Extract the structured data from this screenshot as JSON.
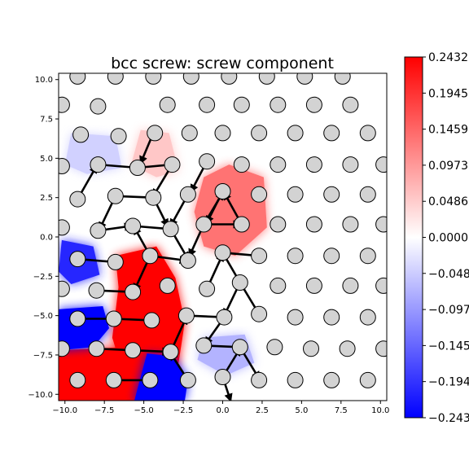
{
  "chart_data": {
    "type": "heatmap",
    "title": "bcc screw: screw component",
    "xlabel": "",
    "ylabel": "",
    "xlim": [
      -10.4,
      10.4
    ],
    "ylim": [
      -10.4,
      10.4
    ],
    "x_ticks": [
      -10.0,
      -7.5,
      -5.0,
      -2.5,
      0.0,
      2.5,
      5.0,
      7.5,
      10.0
    ],
    "x_tick_labels": [
      "−10.0",
      "−7.5",
      "−5.0",
      "−2.5",
      "0.0",
      "2.5",
      "5.0",
      "7.5",
      "10.0"
    ],
    "y_ticks": [
      10.0,
      7.5,
      5.0,
      2.5,
      0.0,
      -2.5,
      -5.0,
      -7.5,
      -10.0
    ],
    "y_tick_labels": [
      "10.0",
      "7.5",
      "5.0",
      "2.5",
      "0.0",
      "−2.5",
      "−5.0",
      "−7.5",
      "−10.0"
    ],
    "colorbar": {
      "colormap": "bwr",
      "range": [
        -0.2432,
        0.2432
      ],
      "ticks": [
        0.2432,
        0.1945,
        0.1459,
        0.0973,
        0.0486,
        0.0,
        -0.0486,
        -0.0973,
        -0.1459,
        -0.1945,
        -0.2432
      ],
      "tick_labels": [
        "0.2432",
        "0.1945",
        "0.1459",
        "0.0973",
        "0.0486",
        "0.0000",
        "−0.048",
        "−0.097",
        "−0.145",
        "−0.194",
        "−0.243"
      ],
      "colors": {
        "max": "#ff0000",
        "mid": "#ffffff",
        "min": "#0000ff"
      }
    },
    "regions": [
      {
        "sign": "positive",
        "strength": 1.0,
        "polygon": [
          [
            -6.8,
            -1.2
          ],
          [
            -4.2,
            -0.6
          ],
          [
            -3.0,
            -2.6
          ],
          [
            -2.4,
            -5.4
          ],
          [
            -2.8,
            -8.0
          ],
          [
            -3.4,
            -9.2
          ],
          [
            -6.2,
            -9.0
          ],
          [
            -7.0,
            -6.4
          ],
          [
            -6.6,
            -3.2
          ]
        ]
      },
      {
        "sign": "positive",
        "strength": 1.0,
        "polygon": [
          [
            -10.4,
            -7.2
          ],
          [
            -6.2,
            -7.0
          ],
          [
            -3.6,
            -8.6
          ],
          [
            -4.6,
            -10.4
          ],
          [
            -10.4,
            -10.4
          ]
        ]
      },
      {
        "sign": "positive",
        "strength": 0.55,
        "polygon": [
          [
            -1.2,
            3.8
          ],
          [
            0.4,
            4.6
          ],
          [
            2.6,
            3.8
          ],
          [
            2.8,
            0.6
          ],
          [
            0.8,
            -1.2
          ],
          [
            -1.2,
            -0.6
          ],
          [
            -1.8,
            1.6
          ]
        ]
      },
      {
        "sign": "positive",
        "strength": 0.22,
        "polygon": [
          [
            -5.2,
            6.8
          ],
          [
            -3.4,
            6.6
          ],
          [
            -2.8,
            4.2
          ],
          [
            -4.2,
            3.8
          ],
          [
            -5.8,
            4.6
          ]
        ]
      },
      {
        "sign": "negative",
        "strength": 1.0,
        "polygon": [
          [
            -10.4,
            -4.6
          ],
          [
            -7.6,
            -4.4
          ],
          [
            -7.2,
            -5.8
          ],
          [
            -8.2,
            -7.0
          ],
          [
            -10.4,
            -7.2
          ]
        ]
      },
      {
        "sign": "negative",
        "strength": 1.0,
        "polygon": [
          [
            -4.8,
            -7.4
          ],
          [
            -3.2,
            -7.6
          ],
          [
            -2.2,
            -9.0
          ],
          [
            -2.4,
            -10.4
          ],
          [
            -5.6,
            -10.4
          ]
        ]
      },
      {
        "sign": "negative",
        "strength": 0.85,
        "polygon": [
          [
            -10.2,
            -0.2
          ],
          [
            -8.2,
            -0.6
          ],
          [
            -7.8,
            -2.4
          ],
          [
            -9.6,
            -3.0
          ],
          [
            -10.4,
            -2.2
          ]
        ]
      },
      {
        "sign": "negative",
        "strength": 0.3,
        "polygon": [
          [
            -1.2,
            -6.4
          ],
          [
            1.4,
            -6.2
          ],
          [
            2.0,
            -8.0
          ],
          [
            0.2,
            -8.8
          ],
          [
            -1.6,
            -7.8
          ]
        ]
      },
      {
        "sign": "negative",
        "strength": 0.18,
        "polygon": [
          [
            -9.6,
            6.6
          ],
          [
            -6.8,
            6.4
          ],
          [
            -6.4,
            4.4
          ],
          [
            -8.6,
            4.0
          ],
          [
            -10.0,
            4.6
          ]
        ]
      }
    ],
    "atoms": [
      [
        -9.2,
        10.2
      ],
      [
        -6.8,
        10.2
      ],
      [
        -4.4,
        10.2
      ],
      [
        -2.0,
        10.2
      ],
      [
        0.4,
        10.2
      ],
      [
        2.8,
        10.2
      ],
      [
        5.2,
        10.2
      ],
      [
        7.6,
        10.2
      ],
      [
        -10.2,
        8.4
      ],
      [
        -7.9,
        8.3
      ],
      [
        -3.5,
        8.4
      ],
      [
        -1.0,
        8.4
      ],
      [
        1.2,
        8.4
      ],
      [
        3.5,
        8.4
      ],
      [
        5.8,
        8.4
      ],
      [
        8.1,
        8.4
      ],
      [
        -9.0,
        6.5
      ],
      [
        -6.6,
        6.4
      ],
      [
        -4.3,
        6.6
      ],
      [
        -2.1,
        6.6
      ],
      [
        0.0,
        6.6
      ],
      [
        2.3,
        6.6
      ],
      [
        4.6,
        6.6
      ],
      [
        6.9,
        6.6
      ],
      [
        9.2,
        6.6
      ],
      [
        -10.2,
        4.5
      ],
      [
        -7.9,
        4.6
      ],
      [
        -5.4,
        4.4
      ],
      [
        -3.2,
        4.6
      ],
      [
        -1.0,
        4.8
      ],
      [
        1.2,
        4.6
      ],
      [
        3.5,
        4.6
      ],
      [
        5.8,
        4.6
      ],
      [
        8.1,
        4.6
      ],
      [
        10.2,
        4.6
      ],
      [
        -9.2,
        2.4
      ],
      [
        -6.8,
        2.6
      ],
      [
        -4.4,
        2.5
      ],
      [
        -2.2,
        2.7
      ],
      [
        0.0,
        2.9
      ],
      [
        2.3,
        2.7
      ],
      [
        4.6,
        2.7
      ],
      [
        6.9,
        2.7
      ],
      [
        9.2,
        2.7
      ],
      [
        -10.2,
        0.6
      ],
      [
        -7.9,
        0.4
      ],
      [
        -5.7,
        0.7
      ],
      [
        -3.3,
        0.5
      ],
      [
        -1.2,
        0.8
      ],
      [
        1.2,
        0.8
      ],
      [
        3.5,
        0.8
      ],
      [
        5.8,
        0.8
      ],
      [
        8.1,
        0.8
      ],
      [
        10.2,
        0.8
      ],
      [
        -9.2,
        -1.4
      ],
      [
        -6.8,
        -1.6
      ],
      [
        -4.6,
        -1.2
      ],
      [
        -2.2,
        -1.5
      ],
      [
        0.0,
        -1.0
      ],
      [
        2.3,
        -1.2
      ],
      [
        4.6,
        -1.2
      ],
      [
        6.9,
        -1.2
      ],
      [
        9.2,
        -1.2
      ],
      [
        -10.2,
        -3.3
      ],
      [
        -8.0,
        -3.4
      ],
      [
        -5.7,
        -3.5
      ],
      [
        -3.5,
        -3.1
      ],
      [
        -1.0,
        -3.3
      ],
      [
        1.1,
        -2.9
      ],
      [
        3.5,
        -3.1
      ],
      [
        5.8,
        -3.1
      ],
      [
        8.1,
        -3.1
      ],
      [
        10.2,
        -3.1
      ],
      [
        -9.2,
        -5.2
      ],
      [
        -6.9,
        -5.2
      ],
      [
        -4.5,
        -5.3
      ],
      [
        -2.3,
        -5.0
      ],
      [
        0.1,
        -5.1
      ],
      [
        2.3,
        -4.9
      ],
      [
        4.6,
        -5.1
      ],
      [
        6.9,
        -5.1
      ],
      [
        9.2,
        -5.1
      ],
      [
        -10.2,
        -7.1
      ],
      [
        -8.0,
        -7.1
      ],
      [
        -5.7,
        -7.2
      ],
      [
        -3.3,
        -7.3
      ],
      [
        -1.2,
        -6.9
      ],
      [
        1.1,
        -7.0
      ],
      [
        3.3,
        -7.0
      ],
      [
        5.6,
        -7.1
      ],
      [
        7.9,
        -7.1
      ],
      [
        10.2,
        -7.1
      ],
      [
        -9.2,
        -9.1
      ],
      [
        -6.9,
        -9.1
      ],
      [
        -4.6,
        -9.1
      ],
      [
        -2.2,
        -9.1
      ],
      [
        0.0,
        -8.9
      ],
      [
        2.3,
        -9.1
      ],
      [
        4.6,
        -9.1
      ],
      [
        6.9,
        -9.1
      ],
      [
        9.2,
        -9.1
      ]
    ],
    "arrows": [
      [
        -7.9,
        4.6,
        -5.4,
        4.4
      ],
      [
        -5.4,
        4.4,
        -3.2,
        4.6
      ],
      [
        -4.4,
        6.6,
        -5.2,
        4.7
      ],
      [
        -3.2,
        4.6,
        -4.4,
        2.6
      ],
      [
        -1.0,
        4.8,
        -2.0,
        2.9
      ],
      [
        -2.2,
        2.7,
        -3.3,
        0.7
      ],
      [
        -1.2,
        0.8,
        -2.1,
        -1.2
      ],
      [
        0.0,
        2.9,
        -1.0,
        0.9
      ],
      [
        -6.8,
        2.6,
        -7.8,
        0.5
      ],
      [
        -6.8,
        2.6,
        -4.4,
        2.5
      ],
      [
        -4.4,
        2.5,
        -3.5,
        0.7
      ],
      [
        -5.7,
        0.7,
        -3.3,
        0.5
      ],
      [
        -7.9,
        0.4,
        -5.8,
        0.7
      ],
      [
        -4.6,
        -1.2,
        -5.6,
        0.6
      ],
      [
        -4.6,
        -1.2,
        -2.3,
        -1.5
      ],
      [
        -4.6,
        -1.2,
        -5.6,
        -3.4
      ],
      [
        -9.2,
        -1.4,
        -6.8,
        -1.6
      ],
      [
        -8.0,
        -3.4,
        -5.7,
        -3.5
      ],
      [
        -6.9,
        -5.2,
        -4.5,
        -5.3
      ],
      [
        -8.0,
        -7.1,
        -5.7,
        -7.2
      ],
      [
        -5.7,
        -7.2,
        -3.4,
        -7.3
      ],
      [
        -6.9,
        -9.1,
        -4.6,
        -9.1
      ],
      [
        -3.3,
        -7.3,
        -2.3,
        -5.1
      ],
      [
        -2.3,
        -5.0,
        0.1,
        -5.1
      ],
      [
        -2.2,
        -9.1,
        -3.3,
        -7.4
      ],
      [
        -1.2,
        -6.9,
        1.1,
        -7.0
      ],
      [
        1.1,
        -7.0,
        2.3,
        -9.0
      ],
      [
        0.0,
        -8.9,
        1.1,
        -7.1
      ],
      [
        1.1,
        -2.9,
        0.1,
        -5.0
      ],
      [
        0.0,
        -1.0,
        2.3,
        -1.2
      ],
      [
        1.2,
        0.8,
        0.1,
        2.8
      ],
      [
        -1.2,
        0.8,
        1.1,
        0.8
      ],
      [
        0.0,
        -1.0,
        1.1,
        -2.9
      ],
      [
        -1.0,
        -3.3,
        0.0,
        -1.1
      ],
      [
        -1.2,
        0.8,
        0.0,
        2.8
      ],
      [
        -9.2,
        2.4,
        -8.0,
        4.5
      ],
      [
        -9.2,
        -5.2,
        -6.9,
        -5.2
      ],
      [
        -3.3,
        0.5,
        -2.2,
        -1.4
      ],
      [
        2.3,
        -4.9,
        1.1,
        -2.9
      ],
      [
        0.1,
        -5.1,
        -1.1,
        -6.8
      ],
      [
        0.0,
        -8.9,
        0.5,
        -10.4
      ]
    ]
  }
}
